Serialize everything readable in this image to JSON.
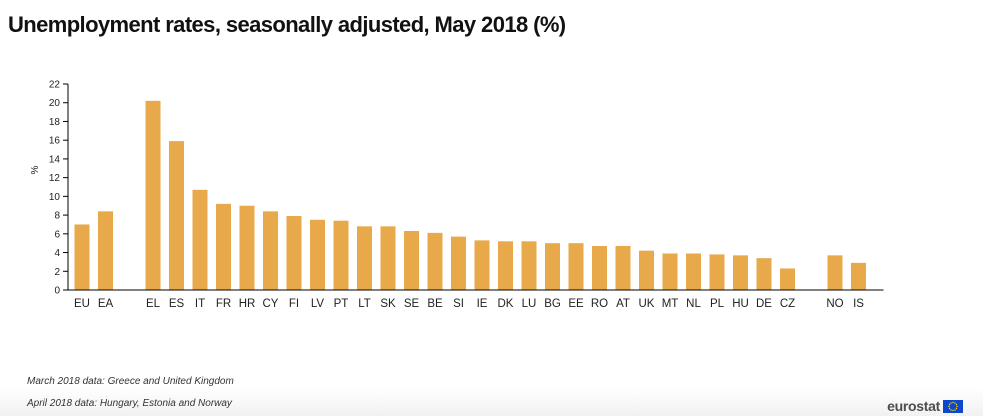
{
  "chart_data": {
    "type": "bar",
    "title": "Unemployment rates, seasonally adjusted, May 2018 (%)",
    "ylabel": "%",
    "xlabel": "",
    "ylim": [
      0,
      22
    ],
    "yticks": [
      0,
      2,
      4,
      6,
      8,
      10,
      12,
      14,
      16,
      18,
      20,
      22
    ],
    "grid": false,
    "bar_color": "#E8A94B",
    "groups": [
      {
        "categories": [
          "EU",
          "EA"
        ],
        "values": [
          7.0,
          8.4
        ]
      },
      {
        "categories": [
          "EL",
          "ES",
          "IT",
          "FR",
          "HR",
          "CY",
          "FI",
          "LV",
          "PT",
          "LT",
          "SK",
          "SE",
          "BE",
          "SI",
          "IE",
          "DK",
          "LU",
          "BG",
          "EE",
          "RO",
          "AT",
          "UK",
          "MT",
          "NL",
          "PL",
          "HU",
          "DE",
          "CZ"
        ],
        "values": [
          20.2,
          15.9,
          10.7,
          9.2,
          9.0,
          8.4,
          7.9,
          7.5,
          7.4,
          6.8,
          6.8,
          6.3,
          6.1,
          5.7,
          5.3,
          5.2,
          5.2,
          5.0,
          5.0,
          4.7,
          4.7,
          4.2,
          3.9,
          3.9,
          3.8,
          3.7,
          3.4,
          2.3
        ]
      },
      {
        "categories": [
          "NO",
          "IS"
        ],
        "values": [
          3.7,
          2.9
        ]
      }
    ]
  },
  "footnotes": [
    "March 2018 data: Greece and United Kingdom",
    "April 2018 data: Hungary, Estonia and Norway"
  ],
  "logo": {
    "text": "eurostat",
    "icon": "eu-flag-icon",
    "flag_color": "#0E47CB",
    "star_color": "#FFDD00"
  }
}
